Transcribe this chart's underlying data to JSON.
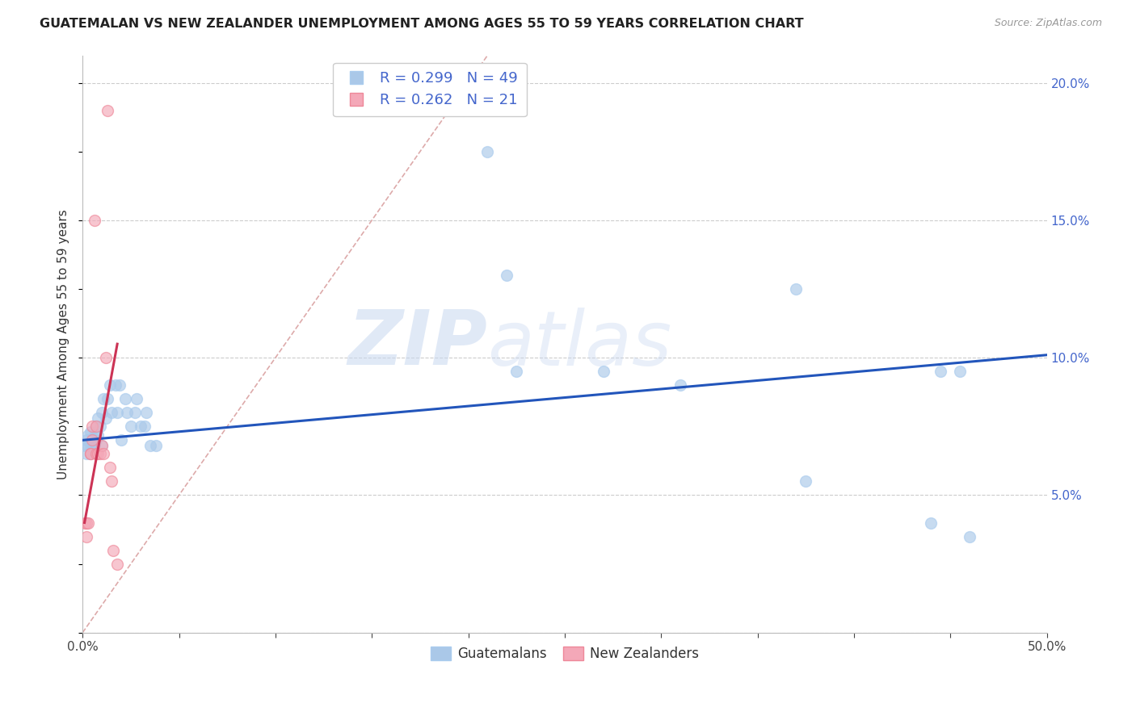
{
  "title": "GUATEMALAN VS NEW ZEALANDER UNEMPLOYMENT AMONG AGES 55 TO 59 YEARS CORRELATION CHART",
  "source": "Source: ZipAtlas.com",
  "ylabel": "Unemployment Among Ages 55 to 59 years",
  "xlim": [
    0,
    0.5
  ],
  "ylim": [
    0,
    0.21
  ],
  "xticks": [
    0.0,
    0.05,
    0.1,
    0.15,
    0.2,
    0.25,
    0.3,
    0.35,
    0.4,
    0.45,
    0.5
  ],
  "xtick_labels": [
    "0.0%",
    "",
    "",
    "",
    "",
    "",
    "",
    "",
    "",
    "",
    "50.0%"
  ],
  "yticks_right": [
    0.0,
    0.05,
    0.1,
    0.15,
    0.2
  ],
  "ytick_labels_right": [
    "",
    "5.0%",
    "10.0%",
    "15.0%",
    "20.0%"
  ],
  "guatemalans_R": 0.299,
  "guatemalans_N": 49,
  "newzealanders_R": 0.262,
  "newzealanders_N": 21,
  "guatemalans_color": "#aac8e8",
  "newzealanders_color": "#f4a8b8",
  "trend_blue_color": "#2255bb",
  "trend_pink_color": "#cc3355",
  "diagonal_color": "#ddaaaa",
  "grid_color": "#cccccc",
  "axis_label_color": "#4466cc",
  "title_color": "#222222",
  "guatemalans_x": [
    0.001,
    0.002,
    0.002,
    0.003,
    0.003,
    0.004,
    0.004,
    0.004,
    0.005,
    0.005,
    0.006,
    0.006,
    0.007,
    0.007,
    0.008,
    0.008,
    0.009,
    0.01,
    0.01,
    0.011,
    0.012,
    0.013,
    0.014,
    0.015,
    0.017,
    0.018,
    0.019,
    0.02,
    0.022,
    0.023,
    0.025,
    0.027,
    0.028,
    0.03,
    0.032,
    0.033,
    0.035,
    0.038,
    0.21,
    0.22,
    0.225,
    0.27,
    0.31,
    0.37,
    0.375,
    0.44,
    0.445,
    0.455,
    0.46
  ],
  "guatemalans_y": [
    0.068,
    0.065,
    0.07,
    0.068,
    0.072,
    0.065,
    0.068,
    0.073,
    0.07,
    0.068,
    0.072,
    0.068,
    0.075,
    0.07,
    0.072,
    0.078,
    0.075,
    0.08,
    0.068,
    0.085,
    0.078,
    0.085,
    0.09,
    0.08,
    0.09,
    0.08,
    0.09,
    0.07,
    0.085,
    0.08,
    0.075,
    0.08,
    0.085,
    0.075,
    0.075,
    0.08,
    0.068,
    0.068,
    0.175,
    0.13,
    0.095,
    0.095,
    0.09,
    0.125,
    0.055,
    0.04,
    0.095,
    0.095,
    0.035
  ],
  "newzealanders_x": [
    0.001,
    0.002,
    0.002,
    0.003,
    0.004,
    0.004,
    0.005,
    0.005,
    0.006,
    0.007,
    0.007,
    0.008,
    0.009,
    0.01,
    0.011,
    0.012,
    0.013,
    0.014,
    0.015,
    0.016,
    0.018
  ],
  "newzealanders_y": [
    0.04,
    0.04,
    0.035,
    0.04,
    0.065,
    0.065,
    0.07,
    0.075,
    0.15,
    0.075,
    0.065,
    0.065,
    0.065,
    0.068,
    0.065,
    0.1,
    0.19,
    0.06,
    0.055,
    0.03,
    0.025
  ],
  "trend_blue_x0": 0.0,
  "trend_blue_y0": 0.07,
  "trend_blue_x1": 0.5,
  "trend_blue_y1": 0.101,
  "trend_pink_x0": 0.001,
  "trend_pink_y0": 0.04,
  "trend_pink_x1": 0.018,
  "trend_pink_y1": 0.105,
  "marker_size": 100,
  "marker_alpha": 0.65,
  "marker_linewidth": 1.0,
  "marker_edgecolor": "#aaccee"
}
